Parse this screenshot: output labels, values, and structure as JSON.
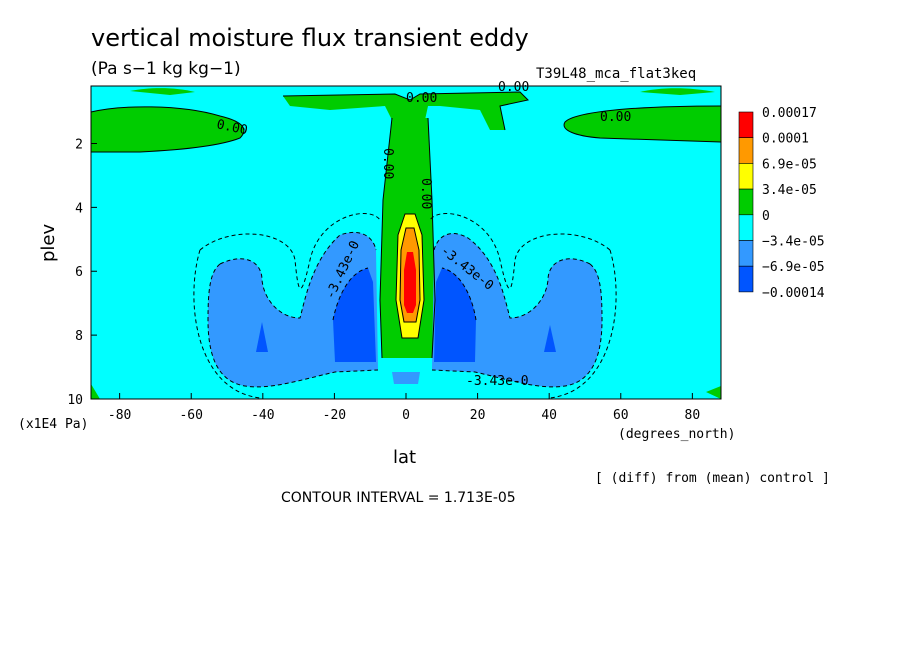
{
  "chart_data": {
    "type": "heatmap",
    "title": "vertical moisture flux transient eddy",
    "units": "(Pa s−1 kg kg−1)",
    "run_label": "T39L48_mca_flat3keq",
    "xlabel": "lat",
    "x_units": "(degrees_north)",
    "ylabel": "plev",
    "y_units": "(x1E4 Pa)",
    "x_ticks": [
      -80,
      -60,
      -40,
      -20,
      0,
      20,
      40,
      60,
      80
    ],
    "y_ticks": [
      2,
      4,
      6,
      8,
      10
    ],
    "xlim": [
      -88,
      88
    ],
    "ylim": [
      0.2,
      10
    ],
    "y_inverted": true,
    "contour_interval_text": "CONTOUR INTERVAL = 1.713E-05",
    "footnote": "[ (diff) from (mean) control ]",
    "contour_labels": [
      "0.00",
      "0.00",
      "0.00",
      "0.00",
      "0.00",
      "0.00",
      "-3.43e-0",
      "-3.43e-0",
      "-3.43e-0"
    ],
    "colorbar": {
      "labels": [
        "0.00017",
        "0.0001",
        "6.9e-05",
        "3.4e-05",
        "0",
        "−3.4e-05",
        "−6.9e-05",
        "−0.00014"
      ],
      "colors": [
        "#ff0000",
        "#ff9900",
        "#ffff00",
        "#00cc00",
        "#00ffff",
        "#3399ff",
        "#0055ff"
      ]
    },
    "field_colors": {
      "background": "#00ffff",
      "positive_low": "#00cc00",
      "positive_mid": "#ffff00",
      "positive_high": "#ff9900",
      "positive_max": "#ff0000",
      "negative_low": "#3399ff",
      "negative_mid": "#0055ff"
    }
  }
}
